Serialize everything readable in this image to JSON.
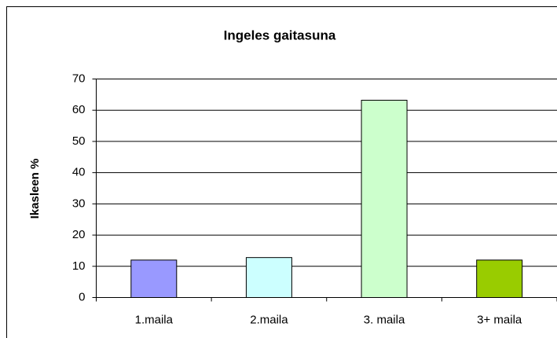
{
  "chart_data": {
    "type": "bar",
    "title": "Ingeles gaitasuna",
    "y_label": "Ikasleen %",
    "categories": [
      "1.maila",
      "2.maila",
      "3. maila",
      "3+ maila"
    ],
    "values": [
      12,
      12.8,
      63.2,
      12
    ],
    "colors": [
      "#9999ff",
      "#ccffff",
      "#ccffcc",
      "#99cc00"
    ],
    "ylim": [
      0,
      70
    ],
    "yticks": [
      0,
      10,
      20,
      30,
      40,
      50,
      60,
      70
    ],
    "grid": true
  }
}
